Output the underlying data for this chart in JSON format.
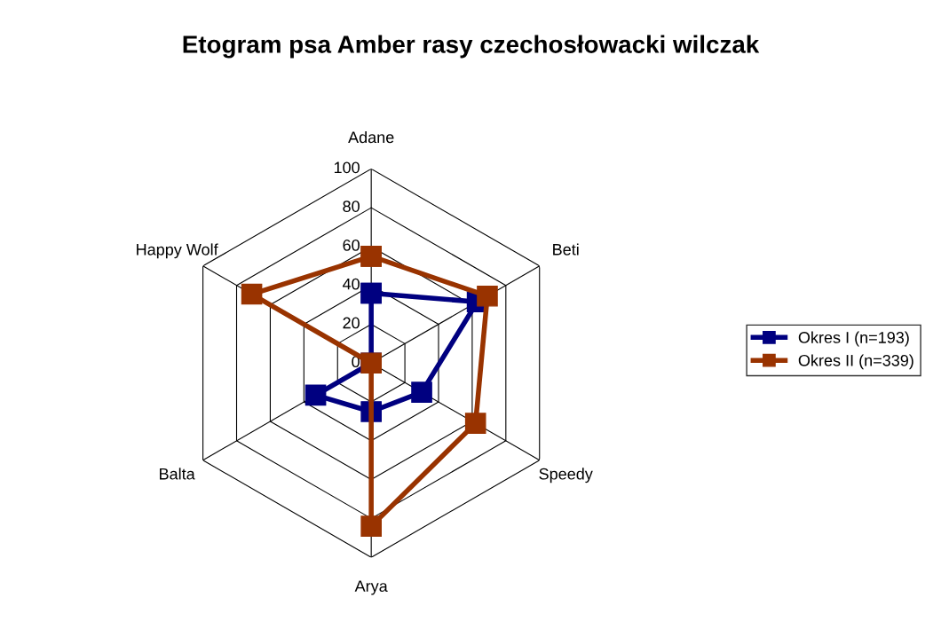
{
  "chart_data": {
    "type": "radar",
    "title": "Etogram psa Amber rasy czechosłowacki wilczak",
    "categories": [
      "Adane",
      "Beti",
      "Speedy",
      "Arya",
      "Balta",
      "Happy Wolf"
    ],
    "series": [
      {
        "name": "Okres I (n=193)",
        "color": "#000080",
        "values": [
          36,
          63,
          30,
          25,
          33,
          0
        ]
      },
      {
        "name": "Okres II (n=339)",
        "color": "#993300",
        "values": [
          55,
          69,
          62,
          84,
          0,
          71
        ]
      }
    ],
    "ylim": [
      0,
      100
    ],
    "yticks": [
      0,
      20,
      40,
      60,
      80,
      100
    ],
    "grid": true,
    "legend": "right",
    "marker": "square",
    "line_style": "solid"
  }
}
